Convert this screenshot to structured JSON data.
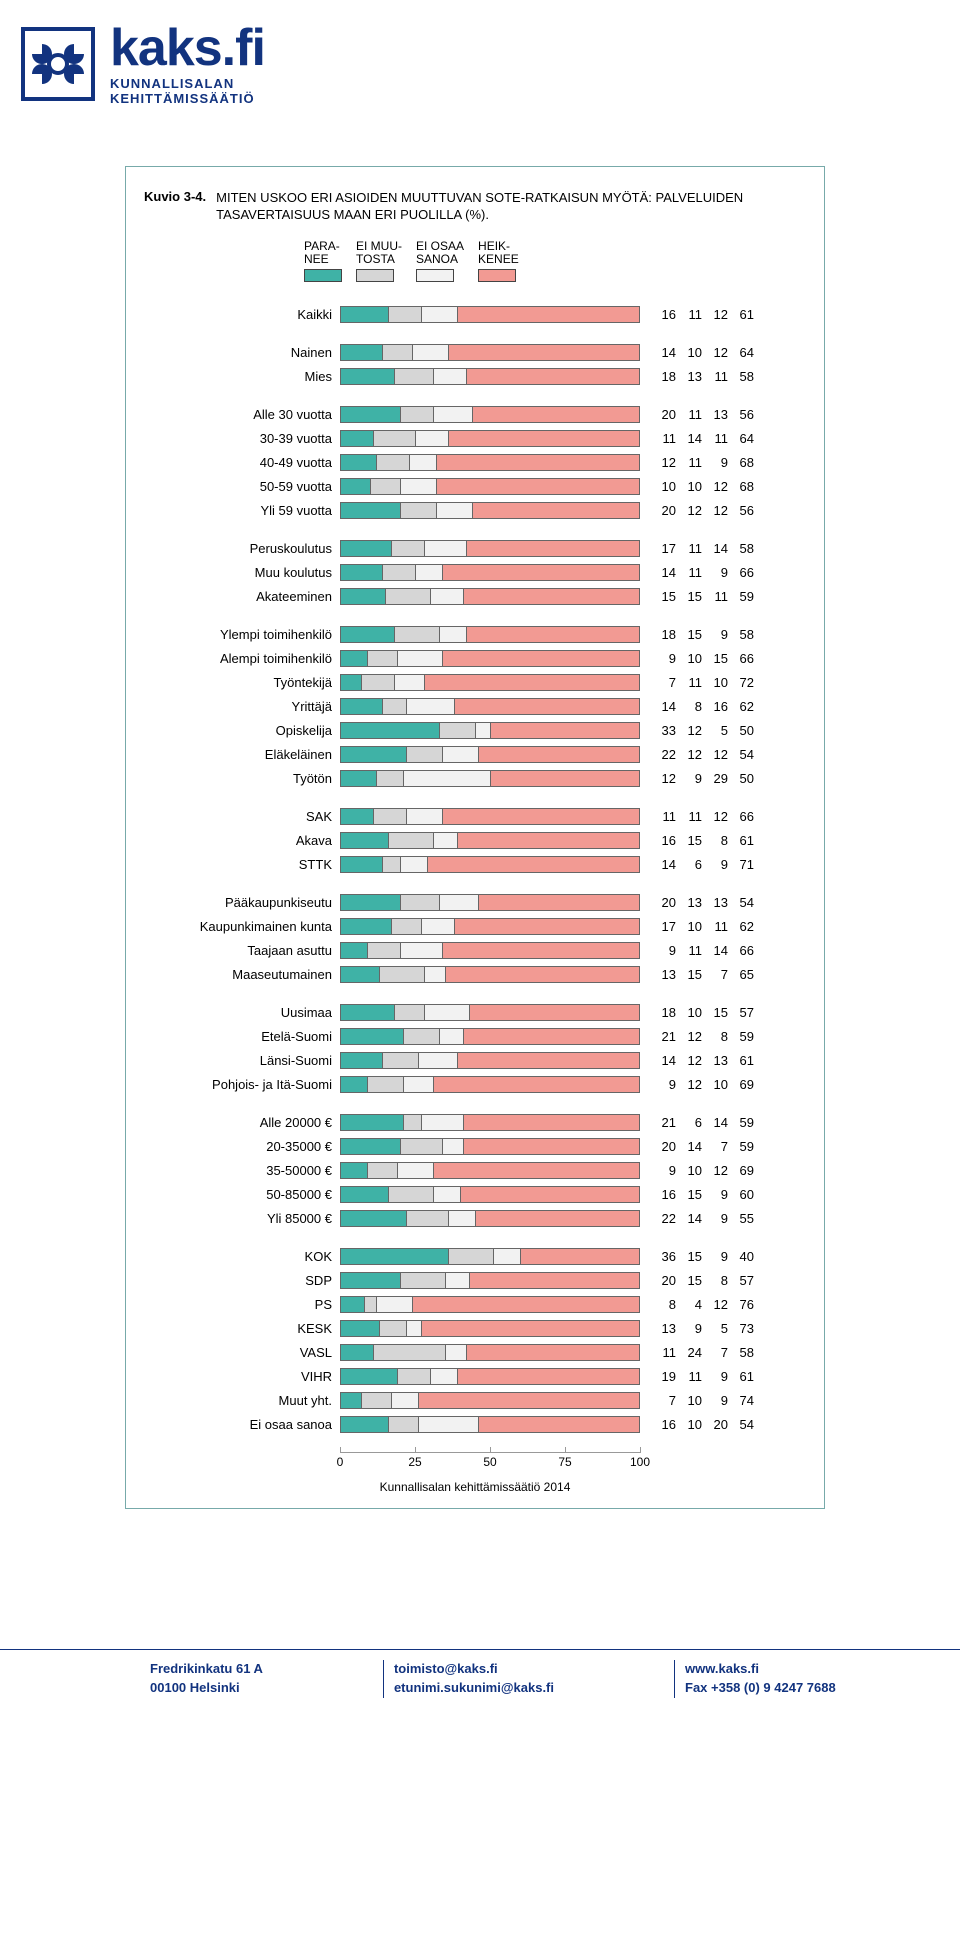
{
  "logo": {
    "site": "kaks.fi",
    "sub1": "KUNNALLISALAN",
    "sub2": "KEHITTÄMISSÄÄTIÖ",
    "mark_color": "#12337f"
  },
  "figure": {
    "label": "Kuvio 3-4.",
    "title": "MITEN USKOO ERI ASIOIDEN MUUTTUVAN SOTE-RATKAISUN MYÖTÄ: PALVELUIDEN TASAVERTAISUUS MAAN ERI PUOLILLA (%)."
  },
  "colors": {
    "paranee": "#3fb2a6",
    "ei_muutosta": "#d6d6d6",
    "ei_osaa_sanoa": "#f2f2f2",
    "heikkenee": "#f29a93",
    "border": "#666666",
    "text": "#000000",
    "frame_border": "#7aa"
  },
  "legend": [
    {
      "key": "paranee",
      "label": "PARA-\nNEE"
    },
    {
      "key": "ei_muutosta",
      "label": "EI MUU-\nTOSTA"
    },
    {
      "key": "ei_osaa_sanoa",
      "label": "EI OSAA\nSANOA"
    },
    {
      "key": "heikkenee",
      "label": "HEIK-\nKENEE"
    }
  ],
  "axis": {
    "min": 0,
    "max": 100,
    "ticks": [
      0,
      25,
      50,
      75,
      100
    ]
  },
  "groups": [
    {
      "rows": [
        {
          "label": "Kaikki",
          "v": [
            16,
            11,
            12,
            61
          ]
        }
      ]
    },
    {
      "rows": [
        {
          "label": "Nainen",
          "v": [
            14,
            10,
            12,
            64
          ]
        },
        {
          "label": "Mies",
          "v": [
            18,
            13,
            11,
            58
          ]
        }
      ]
    },
    {
      "rows": [
        {
          "label": "Alle 30 vuotta",
          "v": [
            20,
            11,
            13,
            56
          ]
        },
        {
          "label": "30-39 vuotta",
          "v": [
            11,
            14,
            11,
            64
          ]
        },
        {
          "label": "40-49 vuotta",
          "v": [
            12,
            11,
            9,
            68
          ]
        },
        {
          "label": "50-59 vuotta",
          "v": [
            10,
            10,
            12,
            68
          ]
        },
        {
          "label": "Yli 59 vuotta",
          "v": [
            20,
            12,
            12,
            56
          ]
        }
      ]
    },
    {
      "rows": [
        {
          "label": "Peruskoulutus",
          "v": [
            17,
            11,
            14,
            58
          ]
        },
        {
          "label": "Muu koulutus",
          "v": [
            14,
            11,
            9,
            66
          ]
        },
        {
          "label": "Akateeminen",
          "v": [
            15,
            15,
            11,
            59
          ]
        }
      ]
    },
    {
      "rows": [
        {
          "label": "Ylempi toimihenkilö",
          "v": [
            18,
            15,
            9,
            58
          ]
        },
        {
          "label": "Alempi toimihenkilö",
          "v": [
            9,
            10,
            15,
            66
          ]
        },
        {
          "label": "Työntekijä",
          "v": [
            7,
            11,
            10,
            72
          ]
        },
        {
          "label": "Yrittäjä",
          "v": [
            14,
            8,
            16,
            62
          ]
        },
        {
          "label": "Opiskelija",
          "v": [
            33,
            12,
            5,
            50
          ]
        },
        {
          "label": "Eläkeläinen",
          "v": [
            22,
            12,
            12,
            54
          ]
        },
        {
          "label": "Työtön",
          "v": [
            12,
            9,
            29,
            50
          ]
        }
      ]
    },
    {
      "rows": [
        {
          "label": "SAK",
          "v": [
            11,
            11,
            12,
            66
          ]
        },
        {
          "label": "Akava",
          "v": [
            16,
            15,
            8,
            61
          ]
        },
        {
          "label": "STTK",
          "v": [
            14,
            6,
            9,
            71
          ]
        }
      ]
    },
    {
      "rows": [
        {
          "label": "Pääkaupunkiseutu",
          "v": [
            20,
            13,
            13,
            54
          ]
        },
        {
          "label": "Kaupunkimainen kunta",
          "v": [
            17,
            10,
            11,
            62
          ]
        },
        {
          "label": "Taajaan asuttu",
          "v": [
            9,
            11,
            14,
            66
          ]
        },
        {
          "label": "Maaseutumainen",
          "v": [
            13,
            15,
            7,
            65
          ]
        }
      ]
    },
    {
      "rows": [
        {
          "label": "Uusimaa",
          "v": [
            18,
            10,
            15,
            57
          ]
        },
        {
          "label": "Etelä-Suomi",
          "v": [
            21,
            12,
            8,
            59
          ]
        },
        {
          "label": "Länsi-Suomi",
          "v": [
            14,
            12,
            13,
            61
          ]
        },
        {
          "label": "Pohjois- ja Itä-Suomi",
          "v": [
            9,
            12,
            10,
            69
          ]
        }
      ]
    },
    {
      "rows": [
        {
          "label": "Alle 20000 €",
          "v": [
            21,
            6,
            14,
            59
          ]
        },
        {
          "label": "20-35000 €",
          "v": [
            20,
            14,
            7,
            59
          ]
        },
        {
          "label": "35-50000 €",
          "v": [
            9,
            10,
            12,
            69
          ]
        },
        {
          "label": "50-85000 €",
          "v": [
            16,
            15,
            9,
            60
          ]
        },
        {
          "label": "Yli 85000 €",
          "v": [
            22,
            14,
            9,
            55
          ]
        }
      ]
    },
    {
      "rows": [
        {
          "label": "KOK",
          "v": [
            36,
            15,
            9,
            40
          ]
        },
        {
          "label": "SDP",
          "v": [
            20,
            15,
            8,
            57
          ]
        },
        {
          "label": "PS",
          "v": [
            8,
            4,
            12,
            76
          ]
        },
        {
          "label": "KESK",
          "v": [
            13,
            9,
            5,
            73
          ]
        },
        {
          "label": "VASL",
          "v": [
            11,
            24,
            7,
            58
          ]
        },
        {
          "label": "VIHR",
          "v": [
            19,
            11,
            9,
            61
          ]
        },
        {
          "label": "Muut yht.",
          "v": [
            7,
            10,
            9,
            74
          ]
        },
        {
          "label": "Ei osaa sanoa",
          "v": [
            16,
            10,
            20,
            54
          ]
        }
      ]
    }
  ],
  "caption": "Kunnallisalan kehittämissäätiö 2014",
  "footer": {
    "col1_l1": "Fredrikinkatu 61 A",
    "col1_l2": "00100 Helsinki",
    "col2_l1": "toimisto@kaks.fi",
    "col2_l2": "etunimi.sukunimi@kaks.fi",
    "col3_l1": "www.kaks.fi",
    "col3_l2": "Fax +358 (0) 9 4247 7688"
  }
}
